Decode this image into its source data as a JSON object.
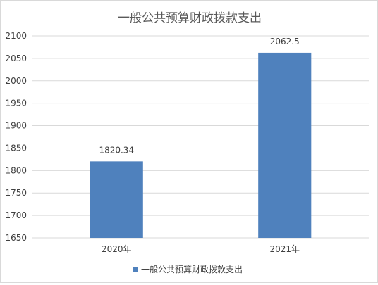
{
  "chart_data": {
    "type": "bar",
    "title": "一般公共预算财政拨款支出",
    "categories": [
      "2020年",
      "2021年"
    ],
    "series": [
      {
        "name": "一般公共预算财政拨款支出",
        "values": [
          1820.34,
          2062.5
        ],
        "data_labels": [
          "1820.34",
          "2062.5"
        ]
      }
    ],
    "ylim": [
      1650,
      2100
    ],
    "y_ticks": [
      "1650",
      "1700",
      "1750",
      "1800",
      "1850",
      "1900",
      "1950",
      "2000",
      "2050",
      "2100"
    ],
    "xlabel": "",
    "ylabel": "",
    "grid": true,
    "legend": "bottom",
    "colors": {
      "bar": "#4f81bd",
      "grid": "#d9d9d9",
      "text": "#404040",
      "title": "#595959"
    }
  }
}
